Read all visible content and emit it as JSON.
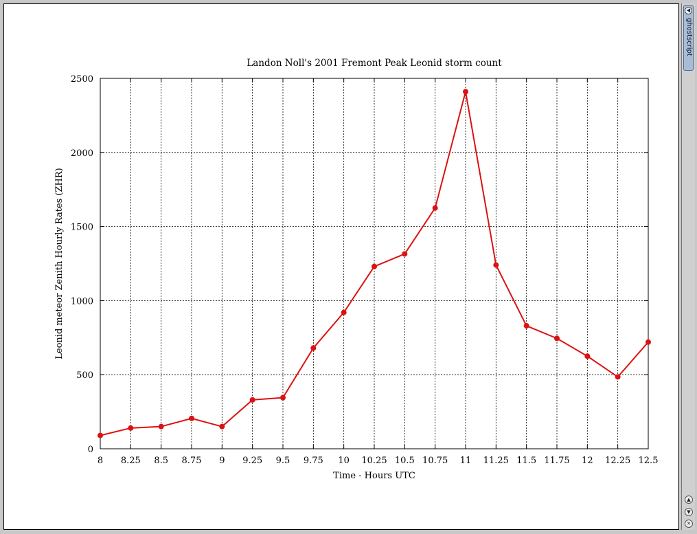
{
  "sidebar": {
    "app_label": "ghostscript",
    "icons": [
      "arrow-left-icon",
      "scroll-up-icon",
      "scroll-down-icon",
      "close-icon"
    ]
  },
  "chart_data": {
    "type": "line",
    "title": "Landon Noll's 2001 Fremont Peak Leonid storm count",
    "xlabel": "Time - Hours UTC",
    "ylabel": "Leonid meteor Zenith Hourly Rates (ZHR)",
    "xlim": [
      8,
      12.5
    ],
    "ylim": [
      0,
      2500
    ],
    "x_ticks": [
      "8",
      "8.25",
      "8.5",
      "8.75",
      "9",
      "9.25",
      "9.5",
      "9.75",
      "10",
      "10.25",
      "10.5",
      "10.75",
      "11",
      "11.25",
      "11.5",
      "11.75",
      "12",
      "12.25",
      "12.5"
    ],
    "y_ticks": [
      "0",
      "500",
      "1000",
      "1500",
      "2000",
      "2500"
    ],
    "grid": true,
    "line_color": "#dd1111",
    "x": [
      8,
      8.25,
      8.5,
      8.75,
      9,
      9.25,
      9.5,
      9.75,
      10,
      10.25,
      10.5,
      10.75,
      11,
      11.25,
      11.5,
      11.75,
      12,
      12.25,
      12.5
    ],
    "y": [
      90,
      140,
      150,
      205,
      150,
      330,
      345,
      680,
      920,
      1230,
      1315,
      1625,
      2410,
      1240,
      830,
      745,
      625,
      485,
      720
    ]
  }
}
